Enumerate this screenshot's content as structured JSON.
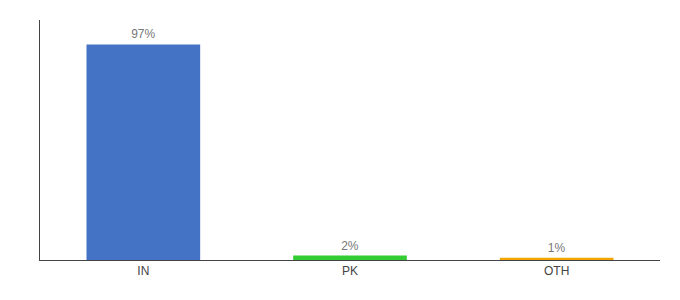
{
  "chart_data": {
    "type": "bar",
    "categories": [
      "IN",
      "PK",
      "OTH"
    ],
    "values": [
      97,
      2,
      1
    ],
    "value_labels": [
      "97%",
      "2%",
      "1%"
    ],
    "colors": [
      "#4472c4",
      "#33cc33",
      "#f0a500"
    ],
    "ylim": [
      0,
      108
    ],
    "data_labels": true,
    "tick_labels": "x",
    "grid": false
  }
}
